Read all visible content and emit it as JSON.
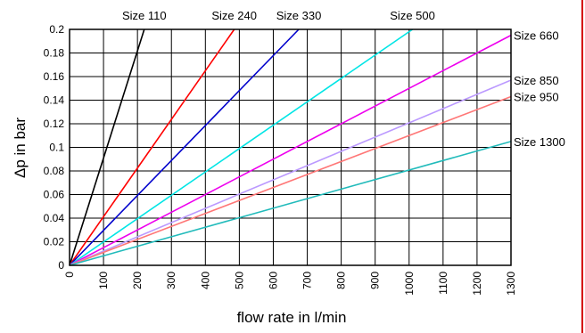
{
  "chart_data": {
    "type": "line",
    "title": "",
    "xlabel": "flow rate in l/min",
    "ylabel": "Δp in bar",
    "xlim": [
      0,
      1300
    ],
    "ylim": [
      0,
      0.2
    ],
    "x_ticks": [
      "0",
      "100",
      "200",
      "300",
      "400",
      "500",
      "600",
      "700",
      "800",
      "900",
      "1000",
      "1100",
      "1200",
      "1300"
    ],
    "y_ticks": [
      "0",
      "0.02",
      "0.04",
      "0.06",
      "0.08",
      "0.1",
      "0.12",
      "0.14",
      "0.16",
      "0.18",
      "0.2"
    ],
    "grid": true,
    "series": [
      {
        "name": "Size 110",
        "color": "#000000",
        "x": [
          0,
          220
        ],
        "y": [
          0,
          0.2
        ]
      },
      {
        "name": "Size 240",
        "color": "#ff0000",
        "x": [
          0,
          485
        ],
        "y": [
          0,
          0.2
        ]
      },
      {
        "name": "Size 330",
        "color": "#0000cc",
        "x": [
          0,
          675
        ],
        "y": [
          0,
          0.2
        ]
      },
      {
        "name": "Size 500",
        "color": "#00e5e5",
        "x": [
          0,
          1010
        ],
        "y": [
          0,
          0.2
        ]
      },
      {
        "name": "Size 660",
        "color": "#ee00ee",
        "x": [
          0,
          1300
        ],
        "y": [
          0,
          0.195
        ]
      },
      {
        "name": "Size 850",
        "color": "#bb99ff",
        "x": [
          0,
          1300
        ],
        "y": [
          0,
          0.157
        ]
      },
      {
        "name": "Size 950",
        "color": "#ff7777",
        "x": [
          0,
          1300
        ],
        "y": [
          0,
          0.143
        ]
      },
      {
        "name": "Size 1300",
        "color": "#22bbbb",
        "x": [
          0,
          1300
        ],
        "y": [
          0,
          0.105
        ]
      }
    ]
  }
}
